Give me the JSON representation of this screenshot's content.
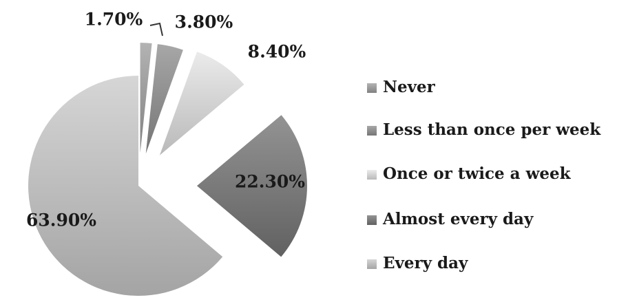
{
  "chart_data": {
    "type": "pie",
    "title": "",
    "categories": [
      "Never",
      "Less than once per week",
      "Once or twice a week",
      "Almost every day",
      "Every day"
    ],
    "values": [
      1.7,
      3.8,
      8.4,
      22.3,
      63.9
    ],
    "labels": [
      "1.70%",
      "3.80%",
      "8.40%",
      "22.30%",
      "63.90%"
    ],
    "legend_position": "right",
    "exploded": true,
    "colors": [
      "#9a9a9a",
      "#8e8e8e",
      "#d2d2d2",
      "#7a7a7a",
      "#bdbdbd"
    ]
  }
}
